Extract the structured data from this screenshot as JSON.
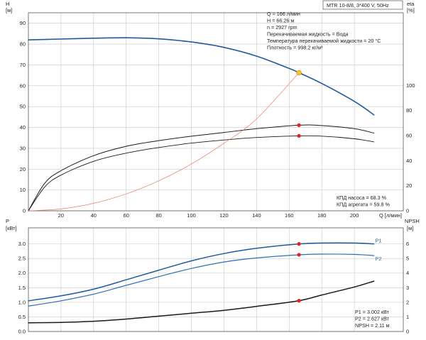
{
  "header": {
    "model": "MTR 10-8/8, 3*400 V, 50Hz"
  },
  "colors": {
    "head": "#1f5aa0",
    "eta_pump": "#1a1a1a",
    "eta_total": "#1a1a1a",
    "system": "#f07a6a",
    "p1": "#1f5aa0",
    "p2": "#2f6fb8",
    "npsh": "#1a1a1a",
    "duty_point": "#f3c623",
    "marker": "#e52020"
  },
  "top_info": {
    "lines": [
      "Q = 166 л/мин",
      "H = 66.26 м",
      "n = 2927 rpm",
      "Перекачиваемая жидкость = Вода",
      "Температура перекачиваемой жидкости = 20 °C",
      "Плотность = 998.2 кг/м³"
    ]
  },
  "top_eff_info": {
    "lines": [
      "КПД насоса = 68.3 %",
      "КПД агрегата = 59.8 %"
    ]
  },
  "bottom_info": {
    "lines": [
      "P1 = 3.002 кВт",
      "P2 = 2.627 кВт",
      "NPSH = 2.11 м"
    ]
  },
  "chart_data": [
    {
      "type": "line",
      "panel": "top",
      "left_axis": {
        "label": "H",
        "unit": "[м]",
        "ticks": [
          0,
          10,
          20,
          30,
          40,
          50,
          60,
          70,
          80,
          90
        ],
        "range": [
          0,
          95
        ]
      },
      "right_axis": {
        "label": "eta",
        "unit": "[%]",
        "ticks": [
          0,
          20,
          40,
          60,
          80,
          100
        ],
        "range": [
          0,
          158
        ]
      },
      "x_axis": {
        "label": "Q [л/мин]",
        "ticks": [
          20,
          40,
          60,
          80,
          100,
          120,
          140,
          160,
          180,
          200
        ],
        "range": [
          0,
          230
        ]
      },
      "grid": true,
      "series": [
        {
          "id": "head",
          "axis": "left",
          "x": [
            0,
            20,
            40,
            60,
            80,
            100,
            120,
            140,
            160,
            166,
            180,
            200,
            212
          ],
          "y": [
            82,
            82.4,
            82.8,
            83,
            82.5,
            81,
            78.4,
            74.2,
            68.3,
            66.26,
            61.1,
            52.5,
            46
          ]
        },
        {
          "id": "eta_pump",
          "axis": "right",
          "x": [
            0,
            10,
            20,
            40,
            60,
            80,
            100,
            120,
            140,
            166,
            180,
            200,
            212
          ],
          "y": [
            0,
            22,
            32,
            44,
            51.5,
            56,
            59.5,
            62.5,
            65.5,
            68.3,
            68,
            65.5,
            62
          ]
        },
        {
          "id": "eta_total",
          "axis": "right",
          "x": [
            0,
            10,
            20,
            40,
            60,
            80,
            100,
            120,
            140,
            166,
            180,
            200,
            212
          ],
          "y": [
            0,
            19,
            28.5,
            39.5,
            46,
            50.5,
            54,
            56.5,
            58.5,
            59.8,
            59.6,
            57.5,
            55
          ]
        },
        {
          "id": "system",
          "axis": "left",
          "x": [
            0,
            20,
            40,
            60,
            80,
            100,
            120,
            140,
            166
          ],
          "y": [
            0,
            0.9,
            3.6,
            8.1,
            14.4,
            22.5,
            32.4,
            44.1,
            66.26
          ]
        }
      ],
      "markers": [
        {
          "series": "head",
          "x": 166,
          "y": 66.26,
          "color": "duty_point"
        },
        {
          "series": "eta_pump",
          "x": 166,
          "y": 68.3,
          "color": "marker"
        },
        {
          "series": "eta_total",
          "x": 166,
          "y": 59.8,
          "color": "marker"
        }
      ]
    },
    {
      "type": "line",
      "panel": "bottom",
      "left_axis": {
        "label": "P",
        "unit": "[кВт]",
        "ticks": [
          0.0,
          0.5,
          1.0,
          1.5,
          2.0,
          2.5,
          3.0
        ],
        "tick_labels": [
          "0.0",
          "0.5",
          "1.0",
          "1.5",
          "2.0",
          "2.5",
          "3.0"
        ],
        "range": [
          0,
          3.55
        ]
      },
      "right_axis": {
        "label": "NPSH",
        "unit": "[м]",
        "ticks": [
          0,
          1,
          2,
          3,
          4,
          5,
          6
        ],
        "range": [
          0,
          7.1
        ]
      },
      "x_axis": {
        "range": [
          0,
          230
        ]
      },
      "grid": true,
      "series": [
        {
          "id": "p1",
          "name": "P1",
          "axis": "left",
          "x": [
            0,
            20,
            40,
            60,
            80,
            100,
            120,
            140,
            166,
            180,
            200,
            212
          ],
          "y": [
            1.05,
            1.22,
            1.45,
            1.77,
            2.1,
            2.42,
            2.67,
            2.85,
            3.0,
            3.03,
            3.03,
            3.0
          ]
        },
        {
          "id": "p2",
          "name": "P2",
          "axis": "left",
          "x": [
            0,
            20,
            40,
            60,
            80,
            100,
            120,
            140,
            166,
            180,
            200,
            212
          ],
          "y": [
            0.87,
            1.05,
            1.28,
            1.58,
            1.88,
            2.16,
            2.38,
            2.52,
            2.627,
            2.65,
            2.64,
            2.6
          ]
        },
        {
          "id": "npsh",
          "axis": "right",
          "x": [
            0,
            20,
            40,
            60,
            80,
            100,
            120,
            140,
            166,
            180,
            200,
            212
          ],
          "y": [
            0.6,
            0.62,
            0.7,
            0.85,
            1.05,
            1.25,
            1.45,
            1.72,
            2.11,
            2.5,
            3.05,
            3.45
          ]
        }
      ],
      "markers": [
        {
          "series": "p1",
          "x": 166,
          "y": 3.0,
          "color": "marker"
        },
        {
          "series": "p2",
          "x": 166,
          "y": 2.627,
          "color": "marker"
        },
        {
          "series": "npsh",
          "x": 166,
          "y": 2.11,
          "color": "marker"
        }
      ]
    }
  ]
}
